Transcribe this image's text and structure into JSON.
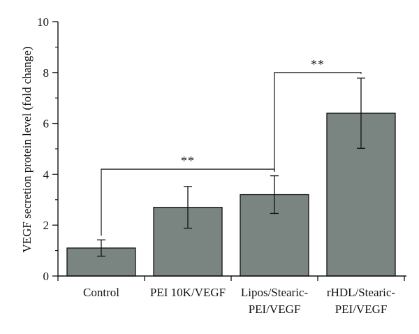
{
  "chart_data": {
    "type": "bar",
    "categories": [
      [
        "Control"
      ],
      [
        "PEI 10K/VEGF"
      ],
      [
        "Lipos/Stearic-",
        "PEI/VEGF"
      ],
      [
        "rHDL/Stearic-",
        "PEI/VEGF"
      ]
    ],
    "values": [
      1.1,
      2.7,
      3.2,
      6.4
    ],
    "errors": [
      0.32,
      0.82,
      0.74,
      1.38
    ],
    "ylabel": "VEGF secretion protein level (fold change)",
    "xlabel": "",
    "ylim": [
      0,
      10
    ],
    "yticks": [
      0,
      2,
      4,
      6,
      8,
      10
    ],
    "bar_color": "#7a8581",
    "significance": [
      {
        "from": 0,
        "to": 2,
        "label": "**",
        "level": 4.2
      },
      {
        "from": 2,
        "to": 3,
        "label": "**",
        "level": 8.0
      }
    ]
  }
}
